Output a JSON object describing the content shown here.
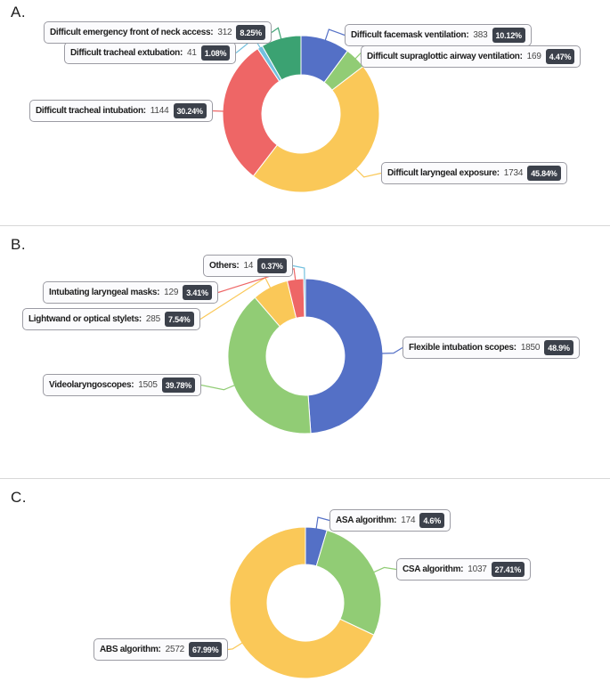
{
  "panels": [
    {
      "letter": "A."
    },
    {
      "letter": "B."
    },
    {
      "letter": "C."
    }
  ],
  "label_separator": ":",
  "ui_colors": {
    "box_border": "#9b9ba3",
    "box_bg": "#fbfbfd",
    "badge_bg": "#3c414b",
    "badge_text": "#ffffff",
    "divider": "#d8d8d8",
    "text": "#1c1c1c",
    "value_text": "#474747"
  },
  "chart_data": [
    {
      "type": "pie",
      "donut": true,
      "panel": "A",
      "start_angle_deg": 0,
      "direction": "clockwise",
      "legend": "none",
      "slices": [
        {
          "label": "Difficult facemask ventilation",
          "value": 383,
          "pct": 10.12,
          "pct_label": "10.12%",
          "color": "#5470c6"
        },
        {
          "label": "Difficult supraglottic airway ventilation",
          "value": 169,
          "pct": 4.47,
          "pct_label": "4.47%",
          "color": "#91cc75"
        },
        {
          "label": "Difficult laryngeal exposure",
          "value": 1734,
          "pct": 45.84,
          "pct_label": "45.84%",
          "color": "#fac858"
        },
        {
          "label": "Difficult tracheal intubation",
          "value": 1144,
          "pct": 30.24,
          "pct_label": "30.24%",
          "color": "#ee6666"
        },
        {
          "label": "Difficult tracheal extubation",
          "value": 41,
          "pct": 1.08,
          "pct_label": "1.08%",
          "color": "#73c0de"
        },
        {
          "label": "Difficult emergency front of neck access",
          "value": 312,
          "pct": 8.25,
          "pct_label": "8.25%",
          "color": "#3ba272"
        }
      ]
    },
    {
      "type": "pie",
      "donut": true,
      "panel": "B",
      "start_angle_deg": 0,
      "direction": "clockwise",
      "legend": "none",
      "slices": [
        {
          "label": "Flexible intubation scopes",
          "value": 1850,
          "pct": 48.9,
          "pct_label": "48.9%",
          "color": "#5470c6"
        },
        {
          "label": "Videolaryngoscopes",
          "value": 1505,
          "pct": 39.78,
          "pct_label": "39.78%",
          "color": "#91cc75"
        },
        {
          "label": "Lightwand or optical stylets",
          "value": 285,
          "pct": 7.54,
          "pct_label": "7.54%",
          "color": "#fac858"
        },
        {
          "label": "Intubating laryngeal masks",
          "value": 129,
          "pct": 3.41,
          "pct_label": "3.41%",
          "color": "#ee6666"
        },
        {
          "label": "Others",
          "value": 14,
          "pct": 0.37,
          "pct_label": "0.37%",
          "color": "#73c0de"
        }
      ]
    },
    {
      "type": "pie",
      "donut": true,
      "panel": "C",
      "start_angle_deg": 0,
      "direction": "clockwise",
      "legend": "none",
      "slices": [
        {
          "label": "ASA algorithm",
          "value": 174,
          "pct": 4.6,
          "pct_label": "4.6%",
          "color": "#5470c6"
        },
        {
          "label": "CSA algorithm",
          "value": 1037,
          "pct": 27.41,
          "pct_label": "27.41%",
          "color": "#91cc75"
        },
        {
          "label": "ABS algorithm",
          "value": 2572,
          "pct": 67.99,
          "pct_label": "67.99%",
          "color": "#fac858"
        }
      ]
    }
  ]
}
